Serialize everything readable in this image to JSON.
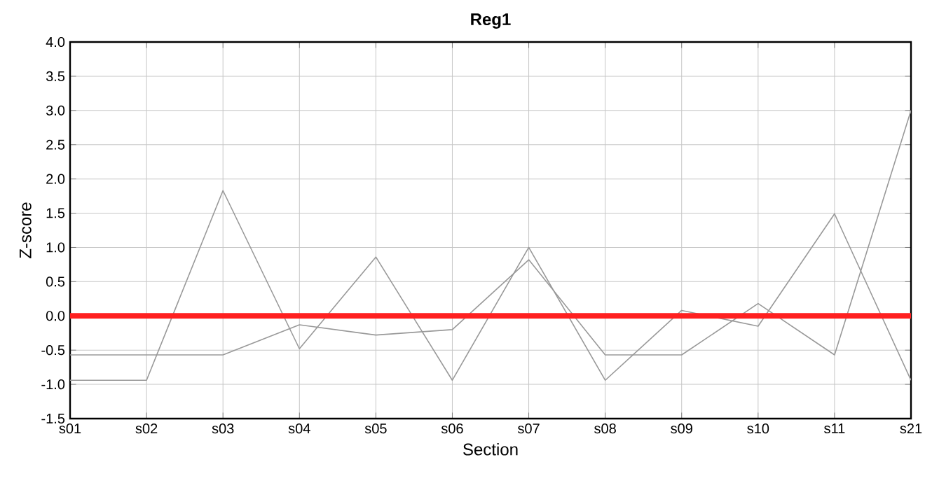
{
  "chart_data": {
    "type": "line",
    "title": "Reg1",
    "xlabel": "Section",
    "ylabel": "Z-score",
    "categories": [
      "s01",
      "s02",
      "s03",
      "s04",
      "s05",
      "s06",
      "s07",
      "s08",
      "s09",
      "s10",
      "s11",
      "s21"
    ],
    "series": [
      {
        "color": "#999999",
        "values": [
          -0.94,
          -0.94,
          1.83,
          -0.48,
          0.86,
          -0.94,
          1.0,
          -0.94,
          0.08,
          -0.15,
          1.49,
          -0.94
        ]
      },
      {
        "color": "#999999",
        "values": [
          -0.57,
          -0.57,
          -0.57,
          -0.13,
          -0.28,
          -0.2,
          0.82,
          -0.57,
          -0.57,
          0.18,
          -0.57,
          3.0
        ]
      }
    ],
    "ylim": [
      -1.5,
      4.0
    ],
    "yticks": [
      {
        "value": -1.5,
        "label": "-1.5"
      },
      {
        "value": -1.0,
        "label": "-1.0"
      },
      {
        "value": -0.5,
        "label": "-0.5"
      },
      {
        "value": 0.0,
        "label": "0.0"
      },
      {
        "value": 0.5,
        "label": "0.5"
      },
      {
        "value": 1.0,
        "label": "1.0"
      },
      {
        "value": 1.5,
        "label": "1.5"
      },
      {
        "value": 2.0,
        "label": "2.0"
      },
      {
        "value": 2.5,
        "label": "2.5"
      },
      {
        "value": 3.0,
        "label": "3.0"
      },
      {
        "value": 3.5,
        "label": "3.5"
      },
      {
        "value": 4.0,
        "label": "4.0"
      }
    ],
    "ref_lines": [
      {
        "axis": "y",
        "value": 0,
        "color": "#ff2020"
      }
    ],
    "grid": true,
    "marker": "none",
    "line_style": "solid"
  }
}
